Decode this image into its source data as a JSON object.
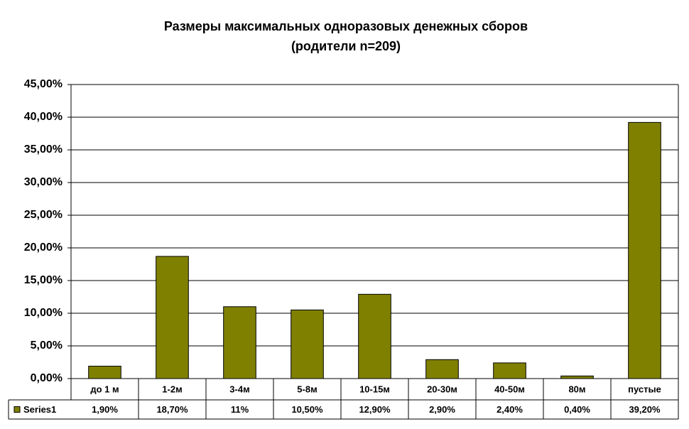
{
  "chart_data": {
    "type": "bar",
    "title": "Размеры максимальных одноразовых денежных сборов",
    "subtitle": "(родители n=209)",
    "categories": [
      "до 1 м",
      "1-2м",
      "3-4м",
      "5-8м",
      "10-15м",
      "20-30м",
      "40-50м",
      "80м",
      "пустые"
    ],
    "series": [
      {
        "name": "Series1",
        "color": "#808000",
        "values": [
          1.9,
          18.7,
          11,
          10.5,
          12.9,
          2.9,
          2.4,
          0.4,
          39.2
        ],
        "value_labels": [
          "1,90%",
          "18,70%",
          "11%",
          "10,50%",
          "12,90%",
          "2,90%",
          "2,40%",
          "0,40%",
          "39,20%"
        ]
      }
    ],
    "ylim": [
      0,
      45
    ],
    "yticks": [
      {
        "value": 0,
        "label": "0,00%"
      },
      {
        "value": 5,
        "label": "5,00%"
      },
      {
        "value": 10,
        "label": "10,00%"
      },
      {
        "value": 15,
        "label": "15,00%"
      },
      {
        "value": 20,
        "label": "20,00%"
      },
      {
        "value": 25,
        "label": "25,00%"
      },
      {
        "value": 30,
        "label": "30,00%"
      },
      {
        "value": 35,
        "label": "35,00%"
      },
      {
        "value": 40,
        "label": "40,00%"
      },
      {
        "value": 45,
        "label": "45,00%"
      }
    ],
    "grid": true
  }
}
